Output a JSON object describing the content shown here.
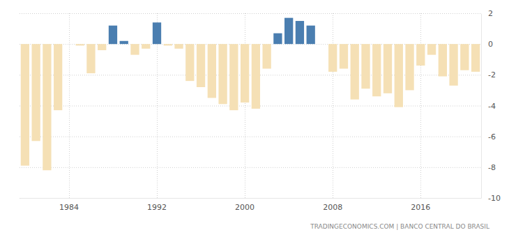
{
  "chart_data": {
    "type": "bar",
    "source": "TRADINGECONOMICS.COM | BANCO CENTRAL DO BRASIL",
    "categories": [
      null,
      null,
      null,
      null,
      "1984",
      null,
      null,
      null,
      null,
      null,
      null,
      null,
      "1992",
      null,
      null,
      null,
      null,
      null,
      null,
      null,
      "2000",
      null,
      null,
      null,
      null,
      null,
      null,
      null,
      "2008",
      null,
      null,
      null,
      null,
      null,
      null,
      null,
      "2016",
      null,
      null,
      null,
      null,
      null
    ],
    "values": [
      -7.9,
      -6.3,
      -8.2,
      -4.3,
      0,
      -0.1,
      -1.9,
      -0.4,
      1.2,
      0.2,
      -0.7,
      -0.3,
      1.4,
      -0.1,
      -0.3,
      -2.4,
      -2.8,
      -3.5,
      -3.9,
      -4.3,
      -3.8,
      -4.2,
      -1.6,
      0.7,
      1.7,
      1.5,
      1.2,
      0,
      -1.8,
      -1.6,
      -3.6,
      -2.9,
      -3.4,
      -3.2,
      -4.1,
      -3.0,
      -1.4,
      -0.7,
      -2.1,
      -2.7,
      -1.7,
      -1.8
    ],
    "colors": [
      "#f5e0b5",
      "#f5e0b5",
      "#f5e0b5",
      "#f5e0b5",
      "#f5e0b5",
      "#f5e0b5",
      "#f5e0b5",
      "#f5e0b5",
      "#4a7eb0",
      "#4a7eb0",
      "#f5e0b5",
      "#f5e0b5",
      "#4a7eb0",
      "#f5e0b5",
      "#f5e0b5",
      "#f5e0b5",
      "#f5e0b5",
      "#f5e0b5",
      "#f5e0b5",
      "#f5e0b5",
      "#f5e0b5",
      "#f5e0b5",
      "#f5e0b5",
      "#4a7eb0",
      "#4a7eb0",
      "#4a7eb0",
      "#4a7eb0",
      "#f5e0b5",
      "#f5e0b5",
      "#f5e0b5",
      "#f5e0b5",
      "#f5e0b5",
      "#f5e0b5",
      "#f5e0b5",
      "#f5e0b5",
      "#f5e0b5",
      "#f5e0b5",
      "#f5e0b5",
      "#f5e0b5",
      "#f5e0b5",
      "#f5e0b5",
      "#f5e0b5"
    ],
    "ylim": [
      -10,
      2
    ],
    "yticks": [
      -10,
      -8,
      -6,
      -4,
      -2,
      0,
      2
    ],
    "grid": true
  }
}
